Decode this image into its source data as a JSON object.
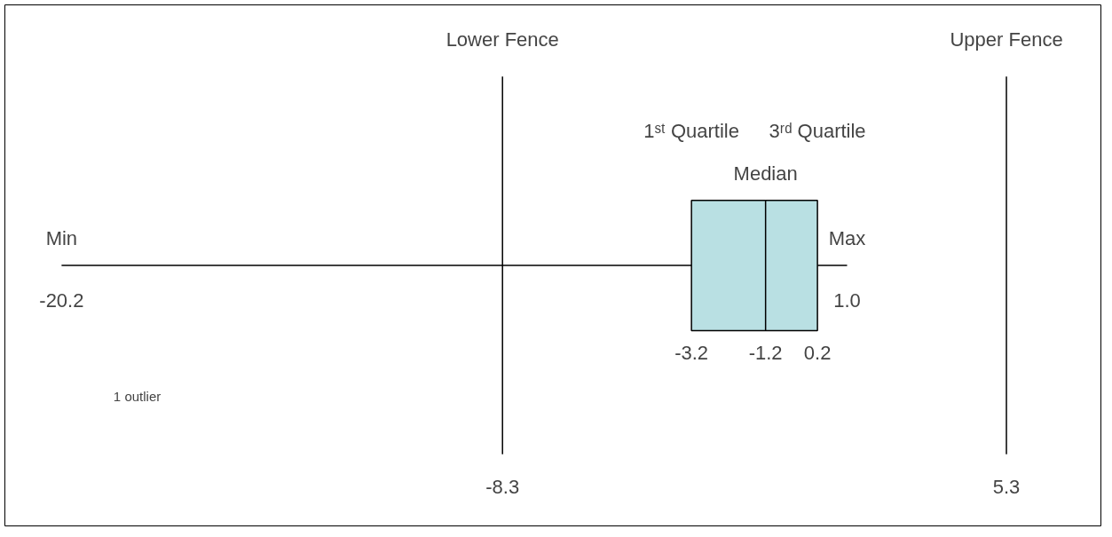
{
  "chart_data": {
    "type": "other",
    "categories": [
      "Min",
      "Lower Fence",
      "1ˢᵗ Quartile",
      "Median",
      "3ʳᵈ Quartile",
      "Max",
      "Upper Fence"
    ],
    "values": [
      -20.2,
      -8.3,
      -3.2,
      -1.2,
      0.2,
      1.0,
      5.3
    ],
    "value_labels": [
      "-20.2",
      "-8.3",
      "-3.2",
      "-1.2",
      "0.2",
      "1.0",
      "5.3"
    ],
    "color": "#b9e0e3",
    "data_labels": true,
    "annotations": [
      "1 outlier"
    ]
  }
}
